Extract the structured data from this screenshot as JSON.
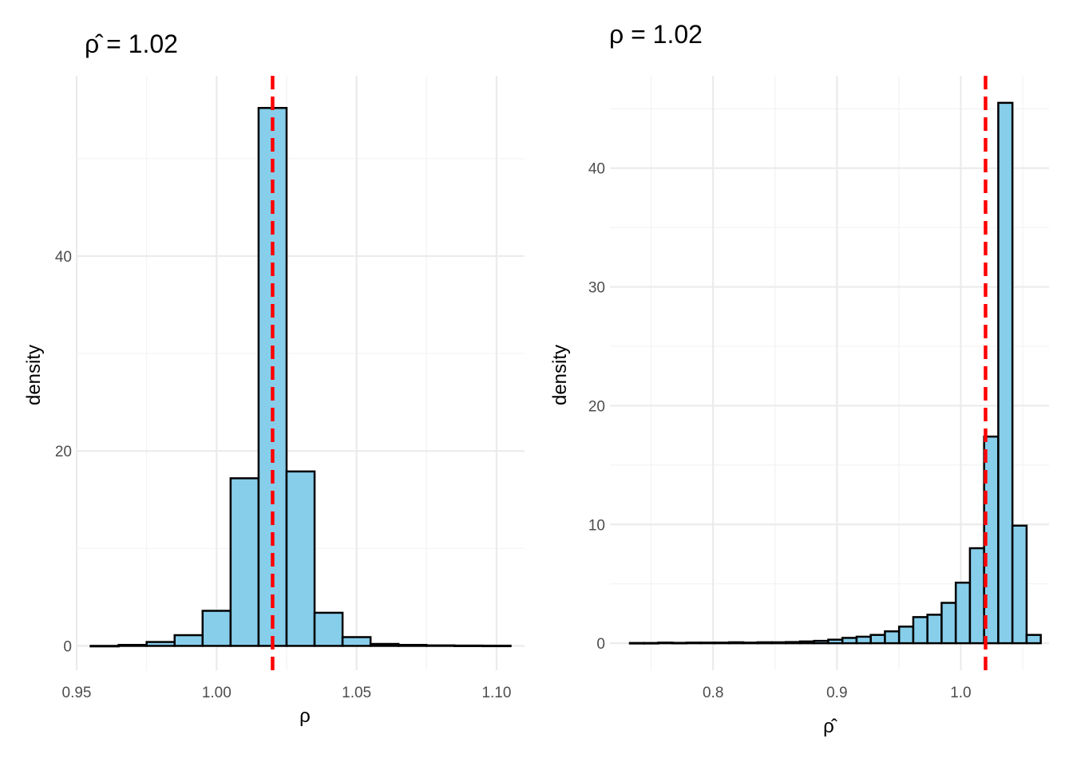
{
  "colors": {
    "bar_fill": "#87ceeb",
    "bar_stroke": "#000000",
    "reference_line": "#ff0000",
    "grid_major": "#ebebeb",
    "grid_minor": "#f3f3f3",
    "tick_text": "#4d4d4d"
  },
  "chart_data": [
    {
      "type": "bar",
      "subtype": "histogram",
      "title": "ρ̂ = 1.02",
      "xlabel": "ρ",
      "ylabel": "density",
      "xlim": [
        0.95,
        1.11
      ],
      "ylim": [
        -2.5,
        58.5
      ],
      "xticks": [
        0.95,
        1.0,
        1.05,
        1.1
      ],
      "xtick_labels": [
        "0.95",
        "1.00",
        "1.05",
        "1.10"
      ],
      "xminor": [
        0.975,
        1.025,
        1.075
      ],
      "yticks": [
        0,
        20,
        40
      ],
      "ytick_labels": [
        "0",
        "20",
        "40"
      ],
      "yminor": [
        10,
        30,
        50
      ],
      "binwidth": 0.01,
      "bins": [
        {
          "x0": 0.955,
          "x1": 0.965,
          "y": 0.0
        },
        {
          "x0": 0.965,
          "x1": 0.975,
          "y": 0.1
        },
        {
          "x0": 0.975,
          "x1": 0.985,
          "y": 0.4
        },
        {
          "x0": 0.985,
          "x1": 0.995,
          "y": 1.1
        },
        {
          "x0": 0.995,
          "x1": 1.005,
          "y": 3.6
        },
        {
          "x0": 1.005,
          "x1": 1.015,
          "y": 17.2
        },
        {
          "x0": 1.015,
          "x1": 1.025,
          "y": 55.2
        },
        {
          "x0": 1.025,
          "x1": 1.035,
          "y": 17.9
        },
        {
          "x0": 1.035,
          "x1": 1.045,
          "y": 3.4
        },
        {
          "x0": 1.045,
          "x1": 1.055,
          "y": 0.9
        },
        {
          "x0": 1.055,
          "x1": 1.065,
          "y": 0.2
        },
        {
          "x0": 1.065,
          "x1": 1.075,
          "y": 0.1
        },
        {
          "x0": 1.075,
          "x1": 1.085,
          "y": 0.05
        },
        {
          "x0": 1.085,
          "x1": 1.095,
          "y": 0.03
        },
        {
          "x0": 1.095,
          "x1": 1.105,
          "y": 0.02
        }
      ],
      "reference_line": {
        "x": 1.02,
        "style": "dashed"
      },
      "grid": true
    },
    {
      "type": "bar",
      "subtype": "histogram",
      "title": "ρ = 1.02",
      "xlabel": "ρ̂",
      "ylabel": "density",
      "xlim": [
        0.71672,
        1.07128
      ],
      "ylim": [
        -2.275,
        47.775
      ],
      "xticks": [
        0.8,
        0.9,
        1.0
      ],
      "xtick_labels": [
        "0.8",
        "0.9",
        "1.0"
      ],
      "xminor": [
        0.75,
        0.85,
        0.95,
        1.05
      ],
      "yticks": [
        0,
        10,
        20,
        30,
        40
      ],
      "ytick_labels": [
        "0",
        "10",
        "20",
        "30",
        "40"
      ],
      "yminor": [
        5,
        15,
        25,
        35,
        45
      ],
      "binwidth": 0.01144,
      "bins": [
        {
          "x0": 0.73284,
          "x1": 0.74428,
          "y": 0.02
        },
        {
          "x0": 0.74428,
          "x1": 0.75572,
          "y": 0.02
        },
        {
          "x0": 0.75572,
          "x1": 0.76716,
          "y": 0.05
        },
        {
          "x0": 0.76716,
          "x1": 0.7786,
          "y": 0.03
        },
        {
          "x0": 0.7786,
          "x1": 0.79004,
          "y": 0.05
        },
        {
          "x0": 0.79004,
          "x1": 0.80148,
          "y": 0.05
        },
        {
          "x0": 0.80148,
          "x1": 0.81292,
          "y": 0.05
        },
        {
          "x0": 0.81292,
          "x1": 0.82436,
          "y": 0.08
        },
        {
          "x0": 0.82436,
          "x1": 0.8358,
          "y": 0.05
        },
        {
          "x0": 0.8358,
          "x1": 0.84724,
          "y": 0.08
        },
        {
          "x0": 0.84724,
          "x1": 0.85868,
          "y": 0.08
        },
        {
          "x0": 0.85868,
          "x1": 0.87012,
          "y": 0.1
        },
        {
          "x0": 0.87012,
          "x1": 0.88156,
          "y": 0.15
        },
        {
          "x0": 0.88156,
          "x1": 0.893,
          "y": 0.2
        },
        {
          "x0": 0.893,
          "x1": 0.90444,
          "y": 0.3
        },
        {
          "x0": 0.90444,
          "x1": 0.91588,
          "y": 0.45
        },
        {
          "x0": 0.91588,
          "x1": 0.92732,
          "y": 0.55
        },
        {
          "x0": 0.92732,
          "x1": 0.93876,
          "y": 0.7
        },
        {
          "x0": 0.93876,
          "x1": 0.9502,
          "y": 1.0
        },
        {
          "x0": 0.9502,
          "x1": 0.96164,
          "y": 1.4
        },
        {
          "x0": 0.96164,
          "x1": 0.97308,
          "y": 2.2
        },
        {
          "x0": 0.97308,
          "x1": 0.98452,
          "y": 2.4
        },
        {
          "x0": 0.98452,
          "x1": 0.99596,
          "y": 3.4
        },
        {
          "x0": 0.99596,
          "x1": 1.0074,
          "y": 5.1
        },
        {
          "x0": 1.0074,
          "x1": 1.01884,
          "y": 8.0
        },
        {
          "x0": 1.01884,
          "x1": 1.03028,
          "y": 17.4
        },
        {
          "x0": 1.03028,
          "x1": 1.04172,
          "y": 45.5
        },
        {
          "x0": 1.04172,
          "x1": 1.05316,
          "y": 9.9
        },
        {
          "x0": 1.05316,
          "x1": 1.0646,
          "y": 0.7
        }
      ],
      "reference_line": {
        "x": 1.02,
        "style": "dashed"
      },
      "grid": true
    }
  ]
}
